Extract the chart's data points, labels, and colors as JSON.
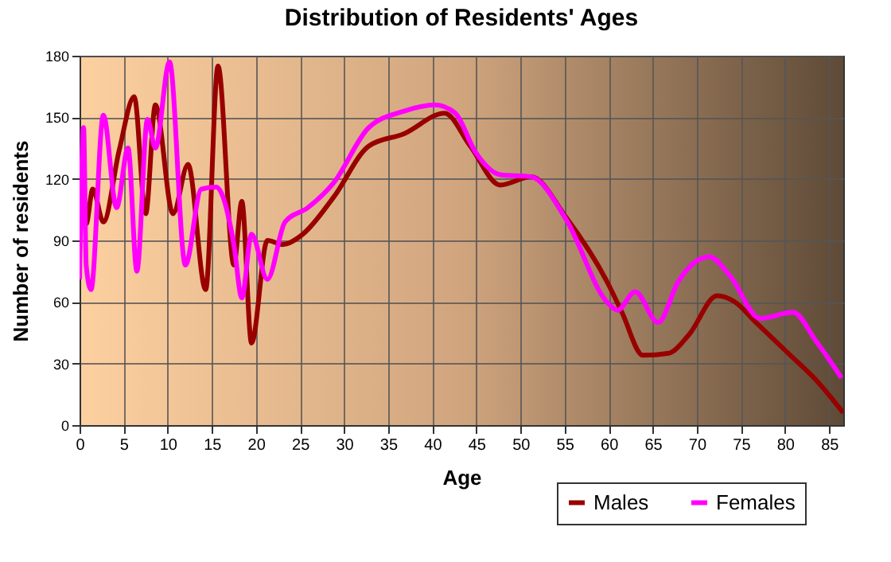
{
  "chart_data": {
    "type": "line",
    "title": "Distribution of Residents' Ages",
    "xlabel": "Age",
    "ylabel": "Number of residents",
    "xlim": [
      0,
      86.6
    ],
    "xticks": [
      0,
      5,
      10,
      15,
      20,
      25,
      30,
      35,
      40,
      45,
      50,
      55,
      60,
      65,
      70,
      75,
      80,
      85
    ],
    "ylim": [
      0,
      180
    ],
    "yticks": [
      0,
      30,
      60,
      90,
      120,
      150,
      180
    ],
    "grid": true,
    "legend": "bottom right",
    "series": [
      {
        "name": "Males",
        "color": "#990000",
        "x": [
          0,
          0.35,
          0.75,
          1.5,
          2.7,
          4.5,
          6.2,
          7.5,
          8.6,
          10.6,
          12.3,
          14.3,
          15.7,
          17.5,
          18.4,
          19.5,
          21.3,
          23,
          25.3,
          28.8,
          32.8,
          36.8,
          41.4,
          44.3,
          47.7,
          51.2,
          55.2,
          59.8,
          61.5,
          63.9,
          66.8,
          69.1,
          72.3,
          74.3,
          76.7,
          80.6,
          83.5,
          86.6
        ],
        "values": [
          93,
          114,
          98,
          115,
          99,
          134,
          160,
          103,
          156,
          103,
          127,
          66,
          175,
          78,
          109,
          40,
          90,
          88,
          93,
          111,
          136,
          142,
          152,
          136,
          117,
          121,
          101,
          70,
          55,
          34,
          35,
          44,
          63,
          60,
          50,
          34,
          22,
          6
        ]
      },
      {
        "name": "Females",
        "color": "#ff00ff",
        "x": [
          0,
          0.46,
          0.75,
          1.3,
          2.7,
          4.2,
          5.5,
          6.5,
          7.7,
          8.6,
          10.2,
          12,
          13.8,
          15.5,
          17.5,
          18.4,
          19.5,
          21.3,
          23.3,
          25.9,
          28.8,
          32.8,
          36.8,
          40.3,
          42.6,
          44.9,
          47.7,
          51.2,
          55.2,
          59.8,
          61,
          63,
          65.6,
          67.9,
          71.4,
          73.7,
          77.2,
          80.9,
          83.5,
          86.4
        ],
        "values": [
          71,
          145,
          78,
          66,
          151,
          106,
          135,
          75,
          149,
          135,
          177,
          78,
          115,
          116,
          88,
          62,
          93,
          71,
          99,
          106,
          118,
          145,
          153,
          156,
          152,
          133,
          122,
          121,
          100,
          60,
          56,
          65,
          50,
          70,
          82,
          73,
          52,
          55,
          41,
          23
        ]
      }
    ]
  }
}
